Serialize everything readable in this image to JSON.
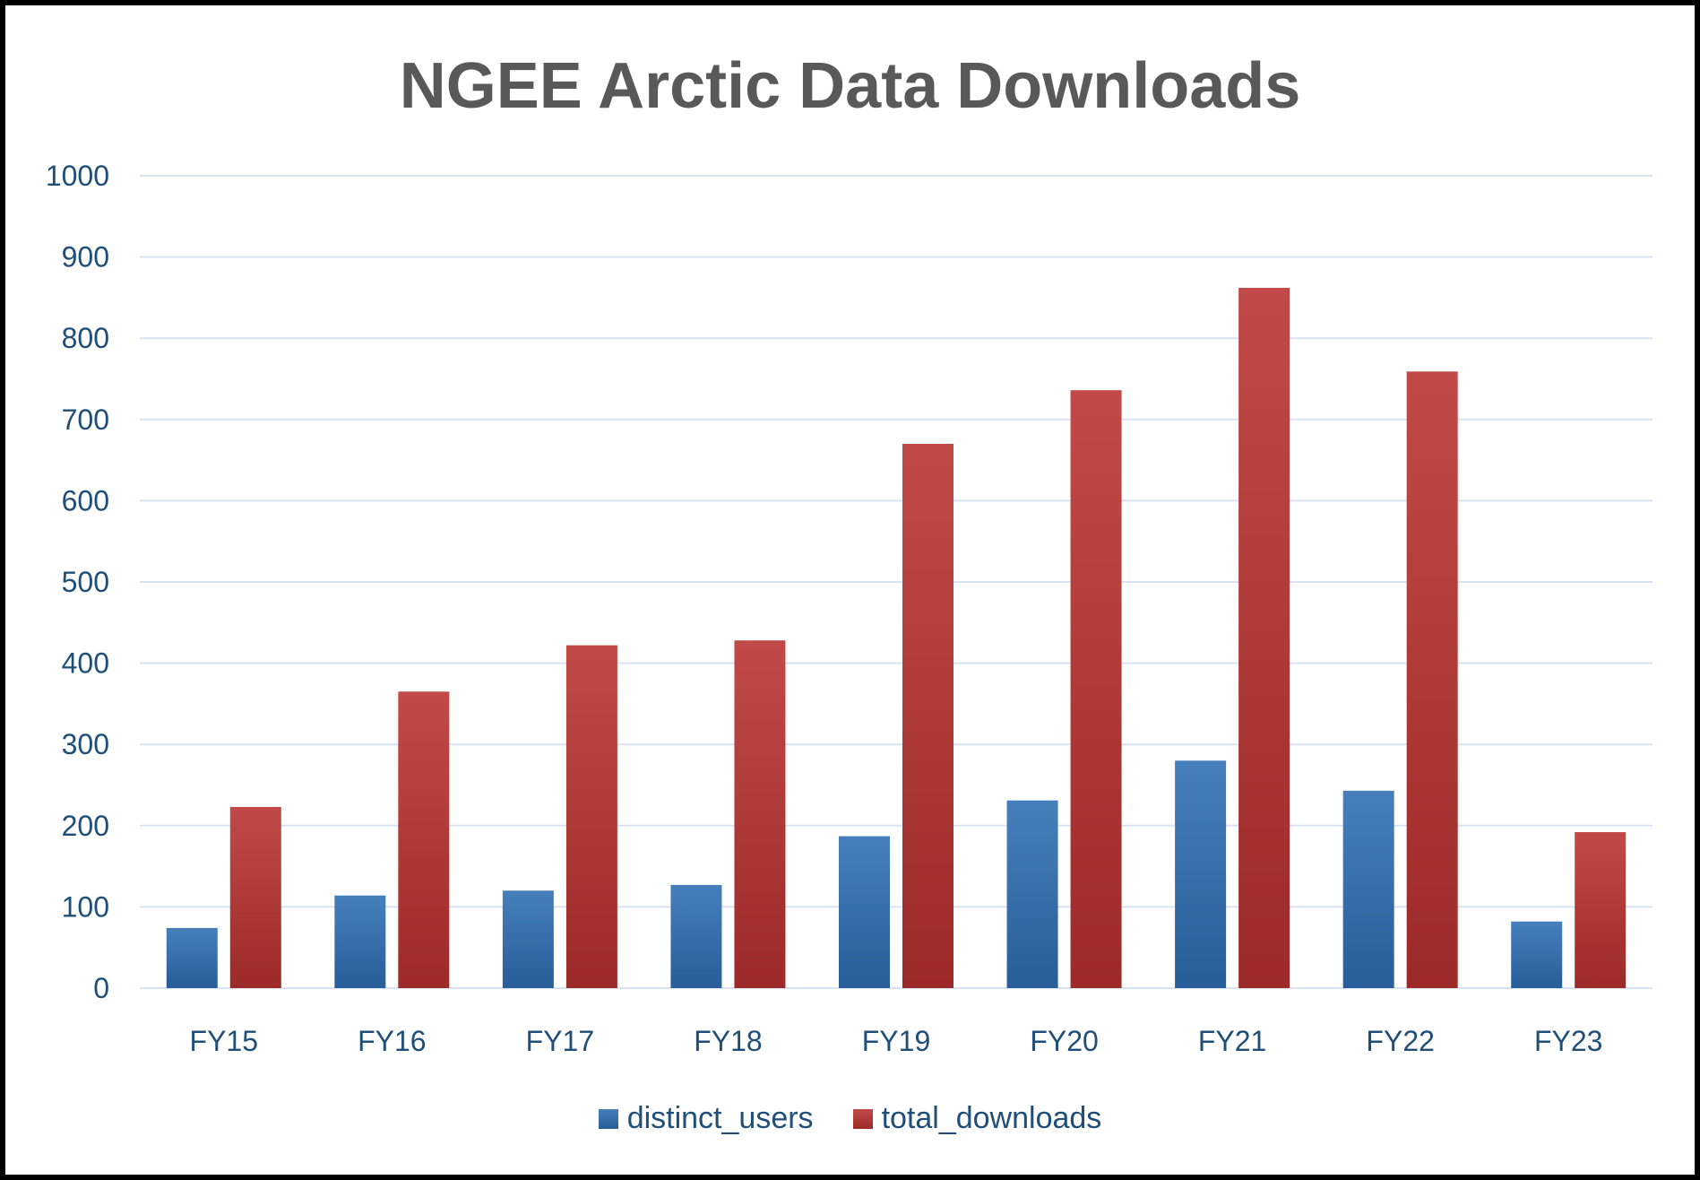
{
  "chart_data": {
    "type": "bar",
    "title": "NGEE Arctic Data Downloads",
    "xlabel": "",
    "ylabel": "",
    "categories": [
      "FY15",
      "FY16",
      "FY17",
      "FY18",
      "FY19",
      "FY20",
      "FY21",
      "FY22",
      "FY23"
    ],
    "series": [
      {
        "name": "distinct_users",
        "values": [
          74,
          114,
          120,
          127,
          187,
          231,
          280,
          243,
          82
        ],
        "color": "#2E6DB4"
      },
      {
        "name": "total_downloads",
        "values": [
          223,
          365,
          422,
          428,
          670,
          736,
          862,
          759,
          192
        ],
        "color": "#B8312F"
      }
    ],
    "ylim": [
      0,
      1000
    ],
    "yticks": [
      0,
      100,
      200,
      300,
      400,
      500,
      600,
      700,
      800,
      900,
      1000
    ],
    "grid": true,
    "legend_position": "bottom",
    "colors": {
      "axis_text": "#1F4E79",
      "gridline": "#D9E2F0",
      "title": "#595959"
    }
  }
}
